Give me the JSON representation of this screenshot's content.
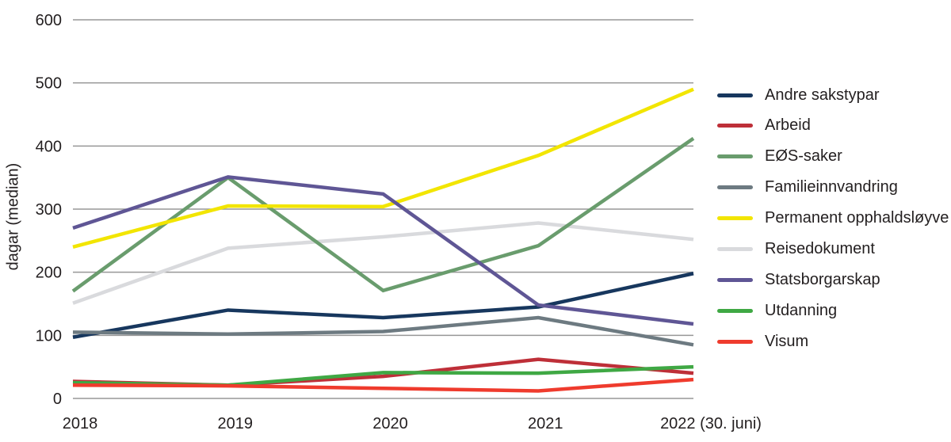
{
  "chart_data": {
    "type": "line",
    "title": "",
    "xlabel": "",
    "ylabel": "dagar (median)",
    "x_categories": [
      "2018",
      "2019",
      "2020",
      "2021",
      "2022 (30. juni)"
    ],
    "ylim": [
      0,
      600
    ],
    "yticks": [
      0,
      100,
      200,
      300,
      400,
      500,
      600
    ],
    "grid": "horizontal-only",
    "legend_position": "right",
    "series": [
      {
        "name": "Andre sakstypar",
        "color": "#17375e",
        "values": [
          97,
          140,
          128,
          145,
          198
        ]
      },
      {
        "name": "Arbeid",
        "color": "#be2f38",
        "values": [
          27,
          21,
          35,
          62,
          40
        ]
      },
      {
        "name": "EØS-saker",
        "color": "#699c6d",
        "values": [
          170,
          350,
          171,
          242,
          412
        ]
      },
      {
        "name": "Familieinnvandring",
        "color": "#6d7a81",
        "values": [
          105,
          102,
          106,
          128,
          85
        ]
      },
      {
        "name": "Permanent opphaldsløyve",
        "color": "#f2e500",
        "values": [
          240,
          305,
          304,
          385,
          490
        ]
      },
      {
        "name": "Reisedokument",
        "color": "#d9dadd",
        "values": [
          151,
          238,
          256,
          278,
          252
        ]
      },
      {
        "name": "Statsborgarskap",
        "color": "#5f5695",
        "values": [
          270,
          351,
          324,
          148,
          118
        ]
      },
      {
        "name": "Utdanning",
        "color": "#3fa844",
        "values": [
          25,
          21,
          41,
          40,
          50
        ]
      },
      {
        "name": "Visum",
        "color": "#ef3b2d",
        "values": [
          21,
          20,
          16,
          12,
          30
        ]
      }
    ],
    "draw_order": [
      "Reisedokument",
      "Andre sakstypar",
      "Arbeid",
      "EØS-saker",
      "Familieinnvandring",
      "Permanent opphaldsløyve",
      "Statsborgarskap",
      "Utdanning",
      "Visum"
    ]
  },
  "colors": {
    "grid": "#979797",
    "axis_text": "#231f20",
    "background": "#ffffff"
  }
}
